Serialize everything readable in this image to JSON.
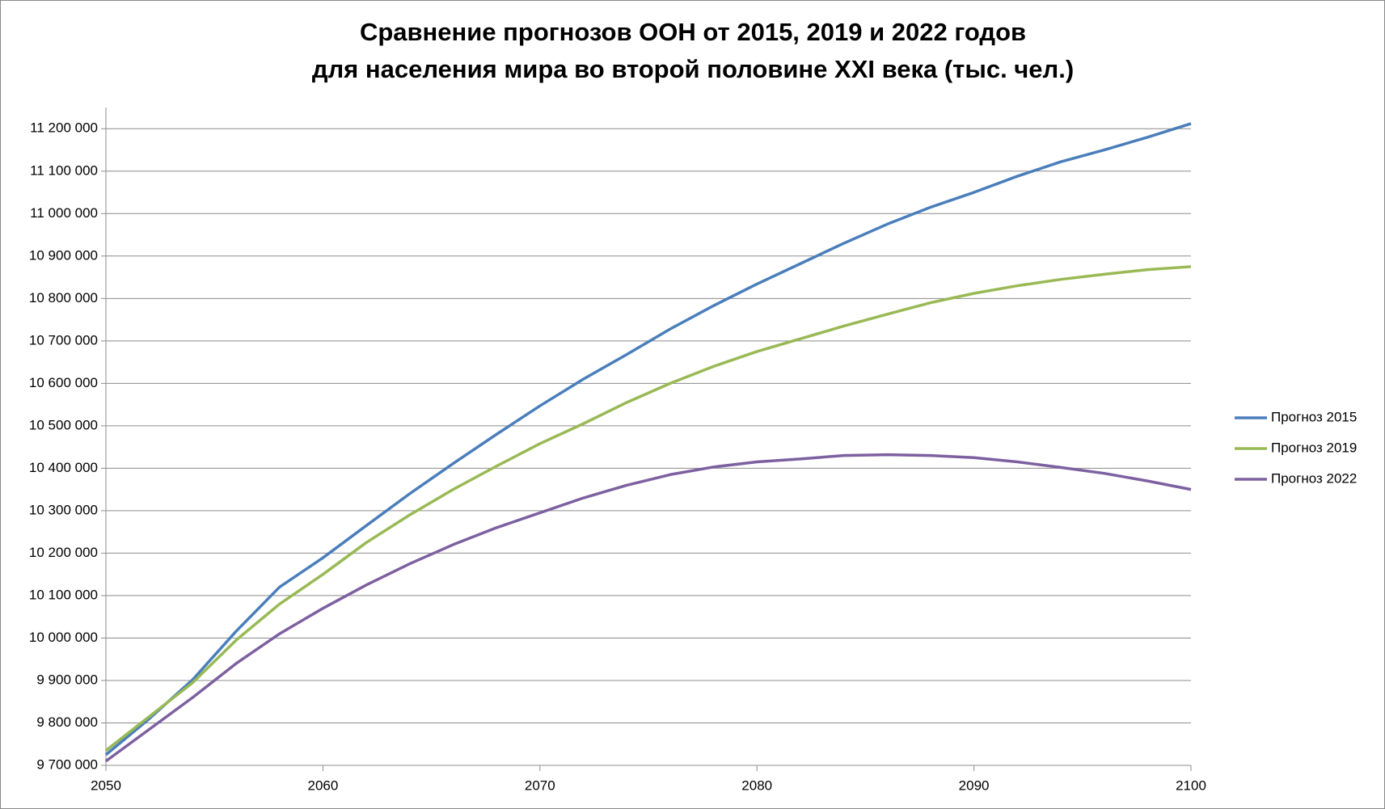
{
  "chart_data": {
    "type": "line",
    "title": [
      "Сравнение прогнозов ООН от 2015, 2019 и 2022 годов",
      "для населения мира во второй половине XXI века (тыс. чел.)"
    ],
    "x": [
      2050,
      2052,
      2054,
      2056,
      2058,
      2060,
      2062,
      2064,
      2066,
      2068,
      2070,
      2072,
      2074,
      2076,
      2078,
      2080,
      2082,
      2084,
      2086,
      2088,
      2090,
      2092,
      2094,
      2096,
      2098,
      2100
    ],
    "series": [
      {
        "name": "Прогноз 2015",
        "color": "#4a7ebb",
        "values": [
          9725000,
          9810000,
          9902000,
          10016000,
          10120000,
          10189000,
          10265000,
          10340000,
          10411000,
          10480000,
          10547000,
          10610000,
          10668000,
          10728000,
          10783000,
          10834000,
          10882000,
          10930000,
          10975000,
          11015000,
          11050000,
          11088000,
          11122000,
          11150000,
          11180000,
          11212000
        ]
      },
      {
        "name": "Прогноз 2019",
        "color": "#98b954",
        "values": [
          9735000,
          9815000,
          9895000,
          9995000,
          10080000,
          10150000,
          10225000,
          10290000,
          10350000,
          10405000,
          10458000,
          10505000,
          10555000,
          10600000,
          10640000,
          10675000,
          10705000,
          10735000,
          10763000,
          10790000,
          10812000,
          10830000,
          10845000,
          10857000,
          10868000,
          10875000
        ]
      },
      {
        "name": "Прогноз 2022",
        "color": "#7d60a0",
        "values": [
          9710000,
          9785000,
          9860000,
          9940000,
          10010000,
          10070000,
          10125000,
          10175000,
          10220000,
          10260000,
          10295000,
          10330000,
          10360000,
          10385000,
          10403000,
          10415000,
          10422000,
          10430000,
          10432000,
          10430000,
          10425000,
          10415000,
          10402000,
          10388000,
          10370000,
          10350000
        ]
      }
    ],
    "xlim": [
      2050,
      2100
    ],
    "xticks": [
      2050,
      2060,
      2070,
      2080,
      2090,
      2100
    ],
    "ylim": [
      9700000,
      11250000
    ],
    "yticks": [
      {
        "value": 9700000,
        "label": "9 700 000"
      },
      {
        "value": 9800000,
        "label": "9 800 000"
      },
      {
        "value": 9900000,
        "label": "9 900 000"
      },
      {
        "value": 10000000,
        "label": "10 000 000"
      },
      {
        "value": 10100000,
        "label": "10 100 000"
      },
      {
        "value": 10200000,
        "label": "10 200 000"
      },
      {
        "value": 10300000,
        "label": "10 300 000"
      },
      {
        "value": 10400000,
        "label": "10 400 000"
      },
      {
        "value": 10500000,
        "label": "10 500 000"
      },
      {
        "value": 10600000,
        "label": "10 600 000"
      },
      {
        "value": 10700000,
        "label": "10 700 000"
      },
      {
        "value": 10800000,
        "label": "10 800 000"
      },
      {
        "value": 10900000,
        "label": "10 900 000"
      },
      {
        "value": 11000000,
        "label": "11 000 000"
      },
      {
        "value": 11100000,
        "label": "11 100 000"
      },
      {
        "value": 11200000,
        "label": "11 200 000"
      }
    ],
    "grid": true,
    "legend": "right"
  }
}
